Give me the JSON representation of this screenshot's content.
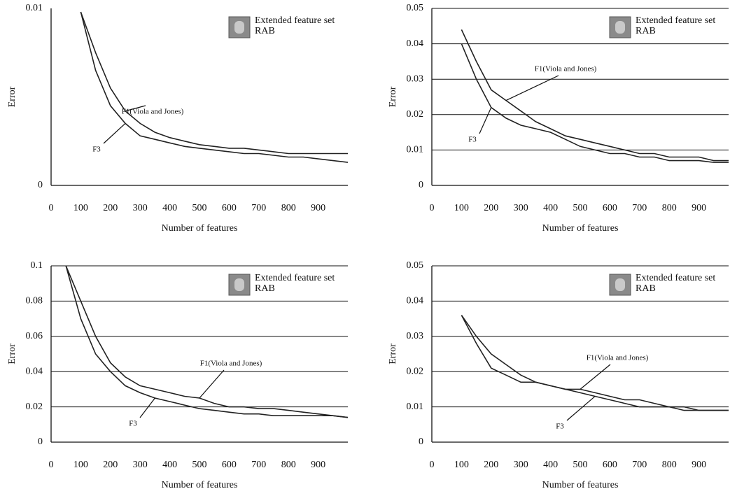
{
  "chart_data": [
    {
      "type": "line",
      "x_label": "Number of features",
      "y_label": "Error",
      "annotations": [
        "Extended feature set",
        "RAB"
      ],
      "xlim": [
        0,
        1000
      ],
      "ylim": [
        0,
        0.01
      ],
      "xticks": [
        0,
        100,
        200,
        300,
        400,
        500,
        600,
        700,
        800,
        900
      ],
      "yticks": [
        0,
        0.01
      ],
      "grid": false,
      "x": [
        100,
        150,
        200,
        250,
        300,
        350,
        400,
        450,
        500,
        550,
        600,
        650,
        700,
        750,
        800,
        850,
        900,
        950,
        1000
      ],
      "series": [
        {
          "name": "F1(Viola and Jones)",
          "color": "#222222",
          "values": [
            0.0098,
            0.0075,
            0.0055,
            0.0042,
            0.0035,
            0.003,
            0.0027,
            0.0025,
            0.0023,
            0.0022,
            0.0021,
            0.0021,
            0.002,
            0.0019,
            0.0018,
            0.0018,
            0.0018,
            0.0018,
            0.0018
          ]
        },
        {
          "name": "F3",
          "color": "#222222",
          "values": [
            0.0098,
            0.0065,
            0.0045,
            0.0035,
            0.0028,
            0.0026,
            0.0024,
            0.0022,
            0.0021,
            0.002,
            0.0019,
            0.0018,
            0.0018,
            0.0017,
            0.0016,
            0.0016,
            0.0015,
            0.0014,
            0.0013
          ]
        }
      ]
    },
    {
      "type": "line",
      "x_label": "Number of features",
      "y_label": "Error",
      "annotations": [
        "Extended feature set",
        "RAB"
      ],
      "xlim": [
        0,
        1000
      ],
      "ylim": [
        0,
        0.05
      ],
      "xticks": [
        0,
        100,
        200,
        300,
        400,
        500,
        600,
        700,
        800,
        900
      ],
      "yticks": [
        0,
        0.01,
        0.02,
        0.03,
        0.04,
        0.05
      ],
      "grid": true,
      "x": [
        100,
        150,
        200,
        250,
        300,
        350,
        400,
        450,
        500,
        550,
        600,
        650,
        700,
        750,
        800,
        850,
        900,
        950,
        1000
      ],
      "series": [
        {
          "name": "F1(Viola and Jones)",
          "color": "#222222",
          "values": [
            0.044,
            0.035,
            0.027,
            0.024,
            0.021,
            0.018,
            0.016,
            0.014,
            0.013,
            0.012,
            0.011,
            0.01,
            0.009,
            0.009,
            0.008,
            0.008,
            0.008,
            0.007,
            0.007
          ]
        },
        {
          "name": "F3",
          "color": "#222222",
          "values": [
            0.04,
            0.03,
            0.022,
            0.019,
            0.017,
            0.016,
            0.015,
            0.013,
            0.011,
            0.01,
            0.009,
            0.009,
            0.008,
            0.008,
            0.007,
            0.007,
            0.007,
            0.0065,
            0.0065
          ]
        }
      ]
    },
    {
      "type": "line",
      "x_label": "Number of features",
      "y_label": "Error",
      "annotations": [
        "Extended feature set",
        "RAB"
      ],
      "xlim": [
        0,
        1000
      ],
      "ylim": [
        0,
        0.1
      ],
      "xticks": [
        0,
        100,
        200,
        300,
        400,
        500,
        600,
        700,
        800,
        900
      ],
      "yticks": [
        0,
        0.02,
        0.04,
        0.06,
        0.08,
        0.1
      ],
      "grid": true,
      "x": [
        50,
        100,
        150,
        200,
        250,
        300,
        350,
        400,
        450,
        500,
        550,
        600,
        650,
        700,
        750,
        800,
        850,
        900,
        950,
        1000
      ],
      "series": [
        {
          "name": "F1(Viola and Jones)",
          "color": "#222222",
          "values": [
            0.1,
            0.08,
            0.06,
            0.045,
            0.037,
            0.032,
            0.03,
            0.028,
            0.026,
            0.025,
            0.022,
            0.02,
            0.02,
            0.019,
            0.019,
            0.018,
            0.017,
            0.016,
            0.015,
            0.014
          ]
        },
        {
          "name": "F3",
          "color": "#222222",
          "values": [
            0.1,
            0.07,
            0.05,
            0.04,
            0.032,
            0.028,
            0.025,
            0.023,
            0.021,
            0.019,
            0.018,
            0.017,
            0.016,
            0.016,
            0.015,
            0.015,
            0.015,
            0.015,
            0.015,
            0.014
          ]
        }
      ]
    },
    {
      "type": "line",
      "x_label": "Number of features",
      "y_label": "Error",
      "annotations": [
        "Extended feature set",
        "RAB"
      ],
      "xlim": [
        0,
        1000
      ],
      "ylim": [
        0,
        0.05
      ],
      "xticks": [
        0,
        100,
        200,
        300,
        400,
        500,
        600,
        700,
        800,
        900
      ],
      "yticks": [
        0,
        0.01,
        0.02,
        0.03,
        0.04,
        0.05
      ],
      "grid": true,
      "x": [
        100,
        150,
        200,
        250,
        300,
        350,
        400,
        450,
        500,
        550,
        600,
        650,
        700,
        750,
        800,
        850,
        900,
        950,
        1000
      ],
      "series": [
        {
          "name": "F1(Viola and Jones)",
          "color": "#222222",
          "values": [
            0.036,
            0.03,
            0.025,
            0.022,
            0.019,
            0.017,
            0.016,
            0.015,
            0.015,
            0.014,
            0.013,
            0.012,
            0.012,
            0.011,
            0.01,
            0.01,
            0.009,
            0.009,
            0.009
          ]
        },
        {
          "name": "F3",
          "color": "#222222",
          "values": [
            0.036,
            0.028,
            0.021,
            0.019,
            0.017,
            0.017,
            0.016,
            0.015,
            0.014,
            0.013,
            0.012,
            0.011,
            0.01,
            0.01,
            0.01,
            0.009,
            0.009,
            0.009,
            0.009
          ]
        }
      ]
    }
  ]
}
